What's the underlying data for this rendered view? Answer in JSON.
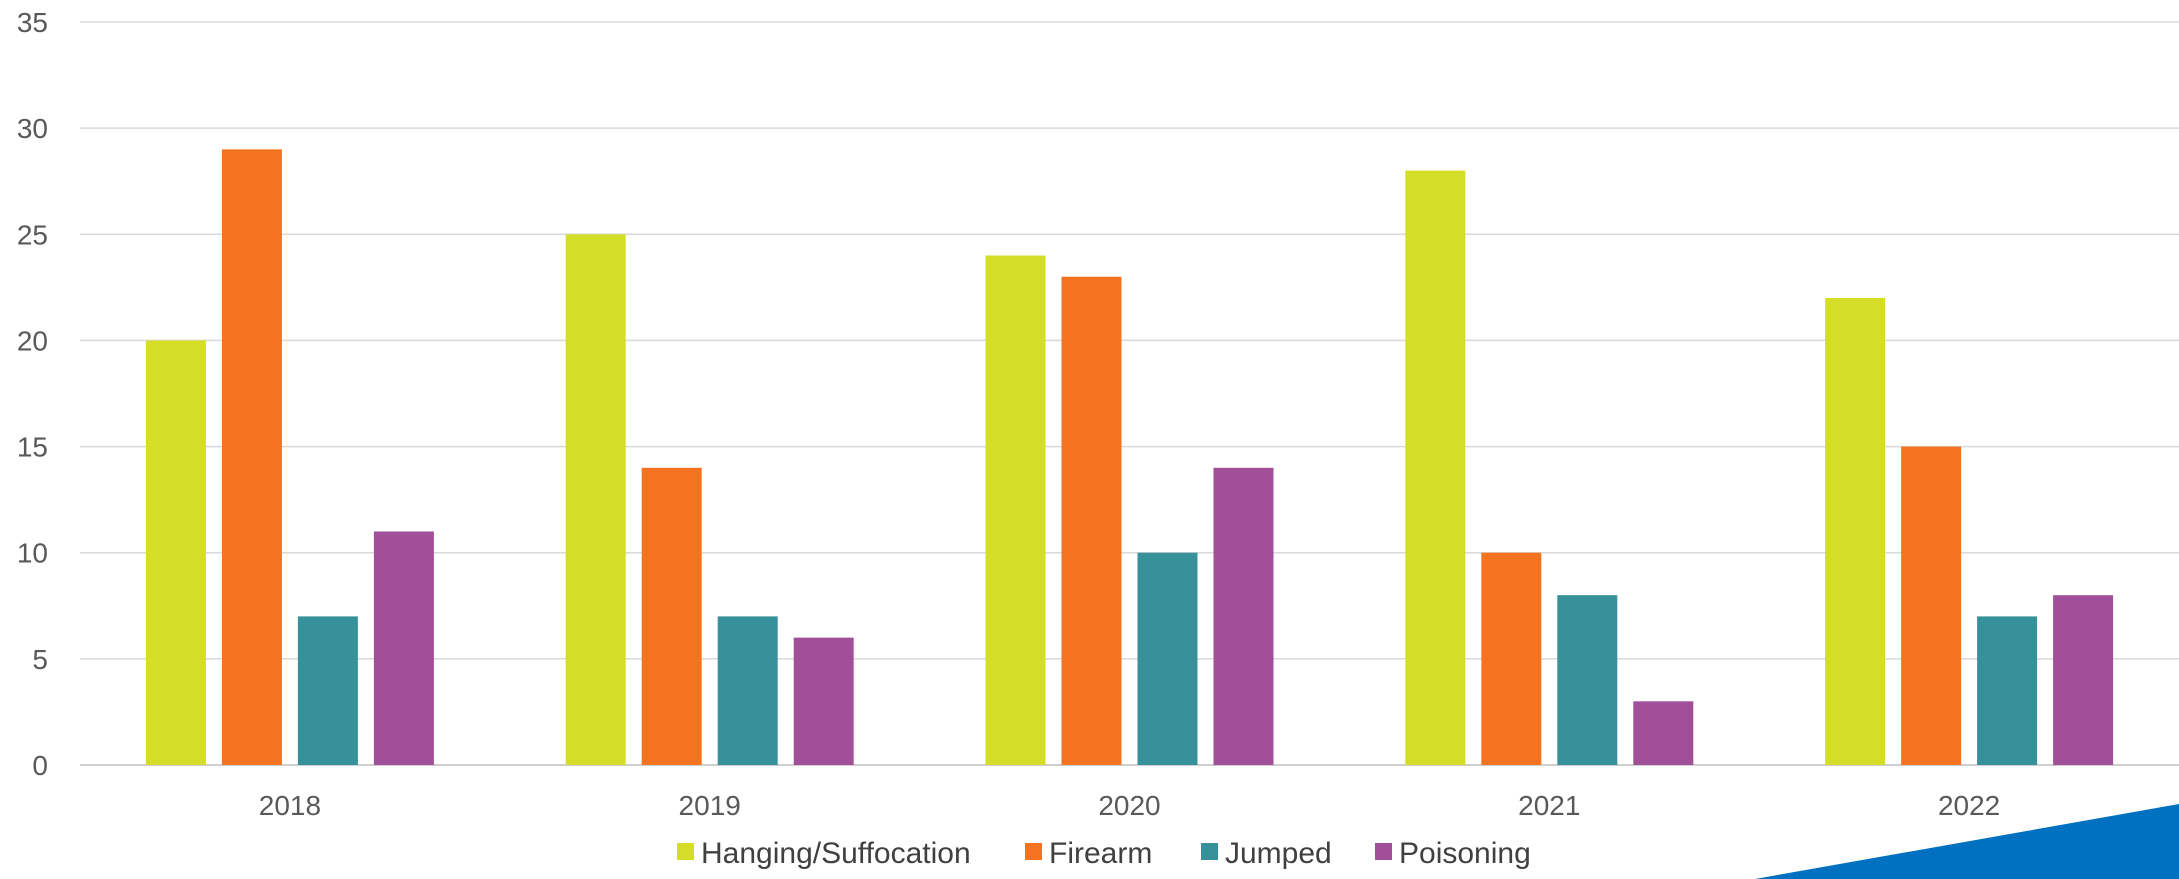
{
  "chart_data": {
    "type": "bar",
    "title": "",
    "xlabel": "",
    "ylabel": "",
    "categories": [
      "2018",
      "2019",
      "2020",
      "2021",
      "2022"
    ],
    "series": [
      {
        "name": "Hanging/Suffocation",
        "color": "#D4DD27",
        "values": [
          20,
          25,
          24,
          28,
          22
        ]
      },
      {
        "name": "Firearm",
        "color": "#F47321",
        "values": [
          29,
          14,
          23,
          10,
          15
        ]
      },
      {
        "name": "Jumped",
        "color": "#37919A",
        "values": [
          7,
          7,
          10,
          8,
          7
        ]
      },
      {
        "name": "Poisoning",
        "color": "#A24F9A",
        "values": [
          11,
          6,
          14,
          3,
          8
        ]
      }
    ],
    "ylim": [
      0,
      35
    ],
    "yticks": [
      "0",
      "5",
      "10",
      "15",
      "20",
      "25",
      "30",
      "35"
    ],
    "grid": true,
    "legend": "bottom",
    "decoration_color": "#0070C0"
  }
}
